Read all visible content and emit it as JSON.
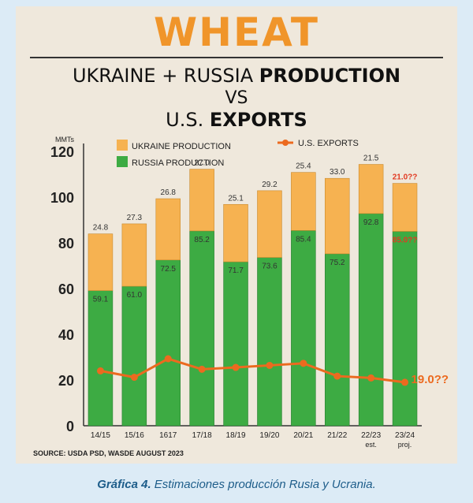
{
  "header": {
    "title": "WHEAT",
    "line1_a": "UKRAINE + RUSSIA ",
    "line1_b": "PRODUCTION",
    "line2": "VS",
    "line3_a": "U.S. ",
    "line3_b": "EXPORTS"
  },
  "source": "SOURCE: USDA PSD, WASDE AUGUST 2023",
  "caption": {
    "bold": "Gráfica 4.",
    "text": " Estimaciones producción Rusia y Ucrania."
  },
  "colors": {
    "ukraine": "#f6b251",
    "russia": "#3dab43",
    "exports": "#ec6a1f",
    "accent_red": "#e23a22",
    "title_orange": "#f0952a"
  },
  "chart_data": {
    "type": "bar",
    "ylabel": "MMTs",
    "ylim": [
      0,
      120
    ],
    "yticks": [
      0,
      20,
      40,
      60,
      80,
      100,
      120
    ],
    "categories": [
      "14/15",
      "15/16",
      "1617",
      "17/18",
      "18/19",
      "19/20",
      "20/21",
      "21/22",
      "22/23",
      "23/24"
    ],
    "category_sublabels": [
      "",
      "",
      "",
      "",
      "",
      "",
      "",
      "",
      "est.",
      "proj."
    ],
    "series": [
      {
        "name": "RUSSIA PRODUCTION",
        "values": [
          59.1,
          61.0,
          72.5,
          85.2,
          71.7,
          73.6,
          85.4,
          75.2,
          92.8,
          85.0
        ],
        "labels": [
          "59.1",
          "61.0",
          "72.5",
          "85.2",
          "71.7",
          "73.6",
          "85.4",
          "75.2",
          "92.8",
          "85.0??"
        ]
      },
      {
        "name": "UKRAINE PRODUCTION",
        "values": [
          24.8,
          27.3,
          26.8,
          27.0,
          25.1,
          29.2,
          25.4,
          33.0,
          21.5,
          21.0
        ],
        "labels": [
          "24.8",
          "27.3",
          "26.8",
          "27.0",
          "25.1",
          "29.2",
          "25.4",
          "33.0",
          "21.5",
          "21.0??"
        ]
      },
      {
        "name": "U.S. EXPORTS",
        "values": [
          24.0,
          21.2,
          29.3,
          24.7,
          25.5,
          26.4,
          27.3,
          21.7,
          20.9,
          19.0
        ],
        "labels": [
          "",
          "",
          "",
          "",
          "",
          "",
          "",
          "",
          "",
          "19.0??"
        ]
      }
    ],
    "legend": "top-left"
  }
}
